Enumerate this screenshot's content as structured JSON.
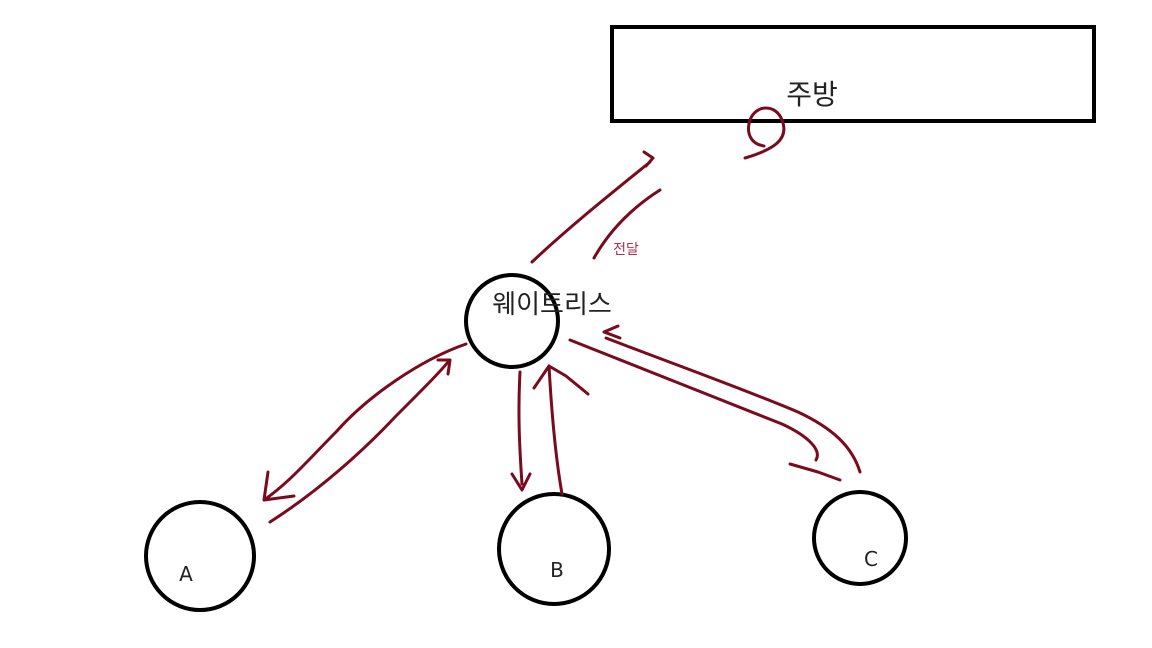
{
  "diagram": {
    "kitchen": {
      "label": "주방"
    },
    "waitress": {
      "label": "웨이트리스"
    },
    "customers": [
      {
        "id": "a",
        "label": "A"
      },
      {
        "id": "b",
        "label": "B"
      },
      {
        "id": "c",
        "label": "C"
      }
    ],
    "transfer_note": {
      "label": "전달"
    },
    "colors": {
      "outline": "#000000",
      "arrow": "#7a0a1e",
      "note_text": "#b0304a",
      "label_text": "#222222",
      "background": "#ffffff"
    }
  }
}
